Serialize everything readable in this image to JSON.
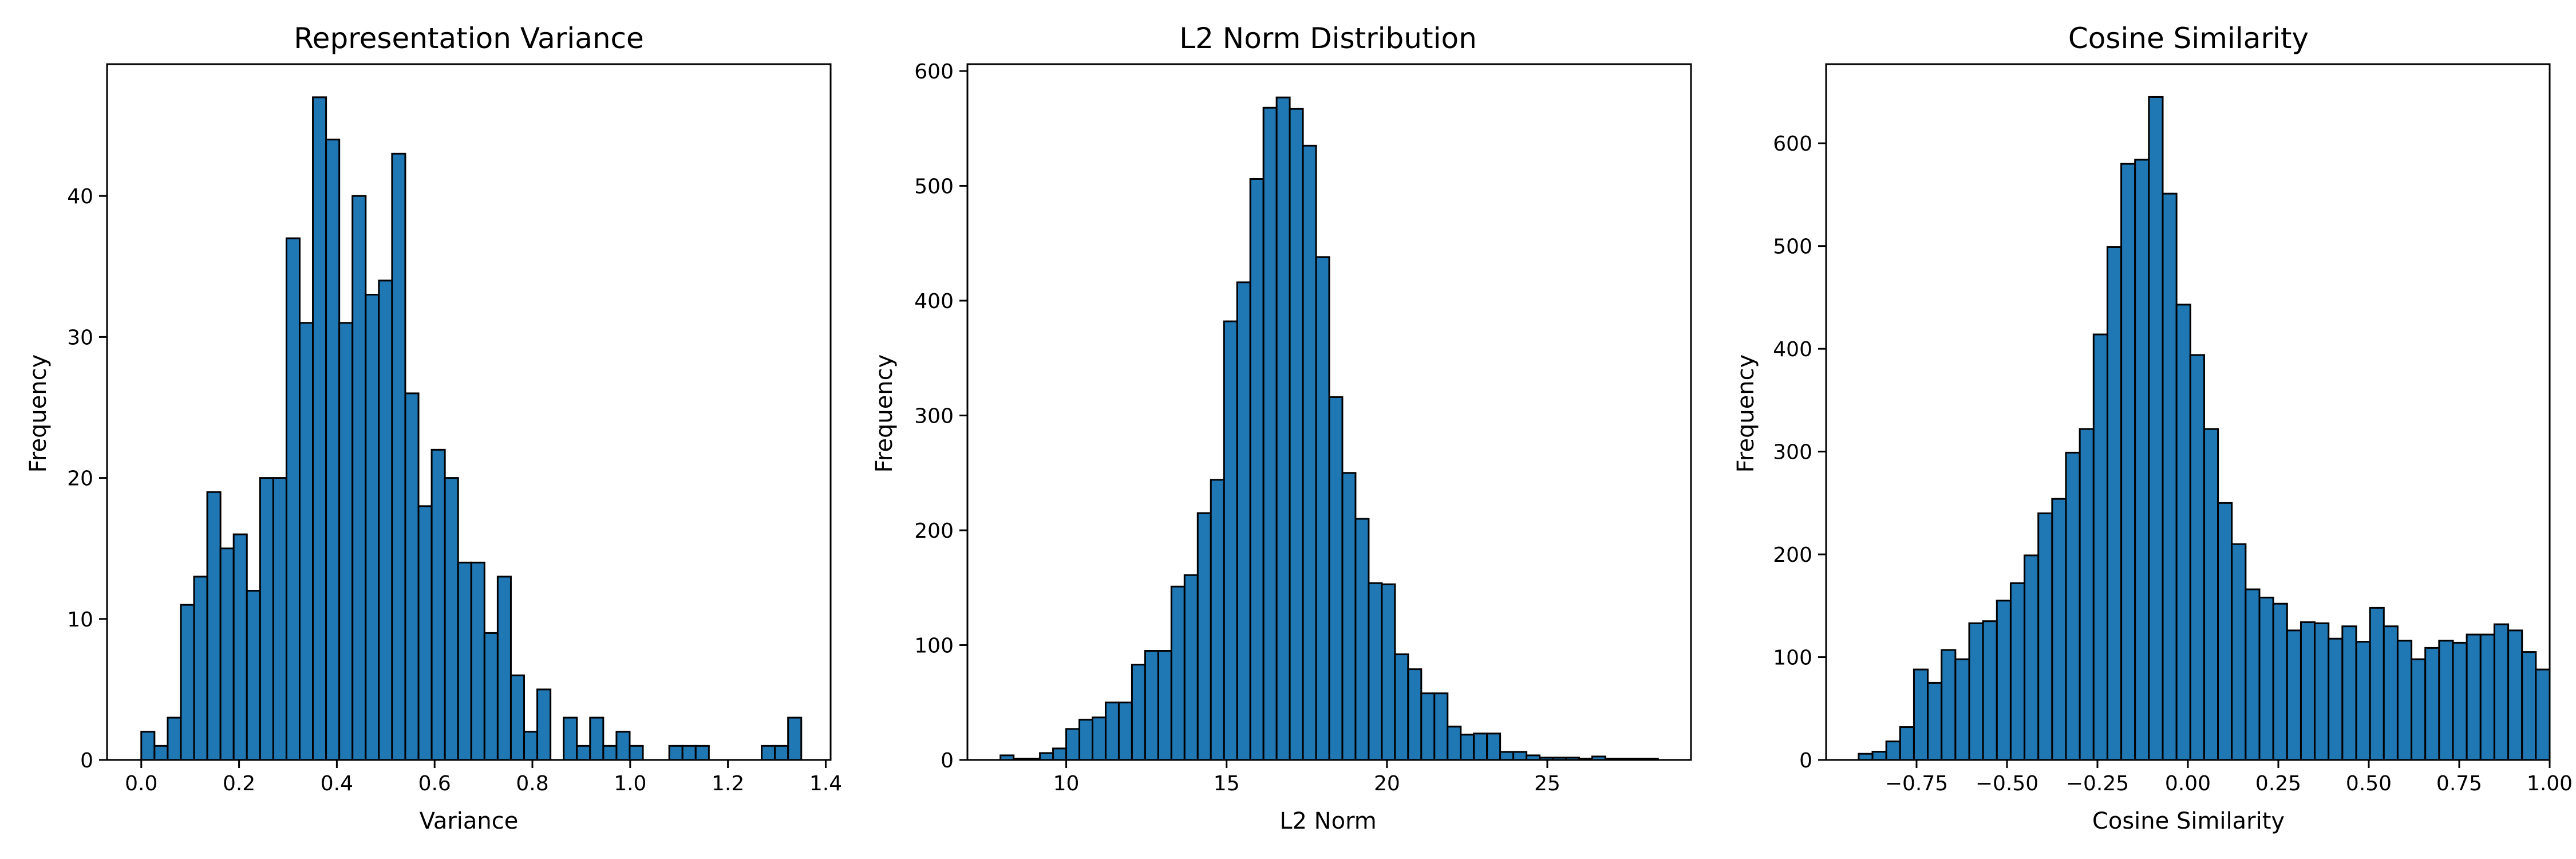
{
  "chart_data": [
    {
      "type": "bar",
      "title": "Representation Variance",
      "xlabel": "Variance",
      "ylabel": "Frequency",
      "xlim": [
        -0.07,
        1.41
      ],
      "ylim": [
        0,
        49.35
      ],
      "xticks": [
        0.0,
        0.2,
        0.4,
        0.6,
        0.8,
        1.0,
        1.2,
        1.4
      ],
      "xticklabels": [
        "0.0",
        "0.2",
        "0.4",
        "0.6",
        "0.8",
        "1.0",
        "1.2",
        "1.4"
      ],
      "yticks": [
        0,
        10,
        20,
        30,
        40
      ],
      "yticklabels": [
        "0",
        "10",
        "20",
        "30",
        "40"
      ],
      "bin_start": 0.0,
      "bin_width": 0.027,
      "counts": [
        2,
        1,
        3,
        11,
        13,
        19,
        15,
        16,
        12,
        20,
        20,
        37,
        31,
        47,
        44,
        31,
        40,
        33,
        34,
        43,
        26,
        18,
        22,
        20,
        14,
        14,
        9,
        13,
        6,
        2,
        5,
        0,
        3,
        1,
        3,
        1,
        2,
        1,
        0,
        0,
        1,
        1,
        1,
        0,
        0,
        0,
        0,
        1,
        1,
        3
      ],
      "bar_color": "#1f77b4",
      "edge_color": "#000000",
      "grid": false,
      "legend": "none"
    },
    {
      "type": "bar",
      "title": "L2 Norm Distribution",
      "xlabel": "L2 Norm",
      "ylabel": "Frequency",
      "xlim": [
        6.92,
        29.48
      ],
      "ylim": [
        0,
        606
      ],
      "xticks": [
        10,
        15,
        20,
        25
      ],
      "xticklabels": [
        "10",
        "15",
        "20",
        "25"
      ],
      "yticks": [
        0,
        100,
        200,
        300,
        400,
        500,
        600
      ],
      "yticklabels": [
        "0",
        "100",
        "200",
        "300",
        "400",
        "500",
        "600"
      ],
      "bin_start": 7.95,
      "bin_width": 0.41,
      "counts": [
        4,
        1,
        1,
        6,
        10,
        27,
        35,
        37,
        50,
        50,
        83,
        95,
        95,
        151,
        161,
        215,
        244,
        382,
        416,
        506,
        568,
        577,
        567,
        535,
        438,
        316,
        250,
        210,
        154,
        153,
        92,
        79,
        58,
        58,
        29,
        22,
        23,
        23,
        7,
        7,
        4,
        2,
        2,
        2,
        1,
        3,
        1,
        1,
        1,
        1
      ],
      "bar_color": "#1f77b4",
      "edge_color": "#000000",
      "grid": false,
      "legend": "none"
    },
    {
      "type": "bar",
      "title": "Cosine Similarity",
      "xlabel": "Cosine Similarity",
      "ylabel": "Frequency",
      "xlim": [
        -1.0,
        1.0
      ],
      "ylim": [
        0,
        677
      ],
      "xticks": [
        -0.75,
        -0.5,
        -0.25,
        0.0,
        0.25,
        0.5,
        0.75,
        1.0
      ],
      "xticklabels": [
        "−0.75",
        "−0.50",
        "−0.25",
        "0.00",
        "0.25",
        "0.50",
        "0.75",
        "1.00"
      ],
      "yticks": [
        0,
        100,
        200,
        300,
        400,
        500,
        600
      ],
      "yticklabels": [
        "0",
        "100",
        "200",
        "300",
        "400",
        "500",
        "600"
      ],
      "bin_start": -0.91,
      "bin_width": 0.0382,
      "counts": [
        6,
        8,
        18,
        32,
        88,
        75,
        107,
        98,
        133,
        135,
        155,
        172,
        199,
        240,
        254,
        299,
        322,
        414,
        499,
        580,
        584,
        645,
        551,
        443,
        394,
        322,
        250,
        210,
        166,
        158,
        152,
        126,
        134,
        133,
        118,
        130,
        115,
        148,
        130,
        116,
        98,
        109,
        116,
        114,
        122,
        122,
        132,
        126,
        105,
        88
      ],
      "bar_color": "#1f77b4",
      "edge_color": "#000000",
      "grid": false,
      "legend": "none"
    }
  ]
}
